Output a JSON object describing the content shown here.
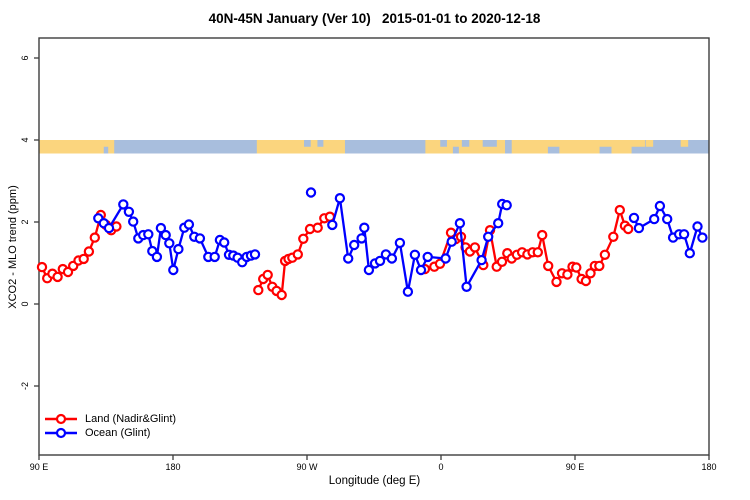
{
  "chart_data": {
    "type": "line",
    "title": "40N-45N January (Ver 10)   2015-01-01 to 2020-12-18",
    "xlabel": "Longitude (deg E)",
    "ylabel": "XCO2 - MLO trend (ppm)",
    "grid": false,
    "x_axis": {
      "min": 90,
      "max": 540,
      "ticks": [
        {
          "lon": 90,
          "label": "90 E"
        },
        {
          "lon": 180,
          "label": "180"
        },
        {
          "lon": 270,
          "label": "90 W"
        },
        {
          "lon": 360,
          "label": "0"
        },
        {
          "lon": 450,
          "label": "90 E"
        },
        {
          "lon": 540,
          "label": "180"
        }
      ]
    },
    "y_axis": {
      "min": -3.7,
      "max": 6.5,
      "ticks": [
        {
          "v": -2,
          "label": "-2"
        },
        {
          "v": 0,
          "label": "0"
        },
        {
          "v": 2,
          "label": "2"
        },
        {
          "v": 4,
          "label": "4"
        },
        {
          "v": 6,
          "label": "6"
        }
      ]
    },
    "map_strip": {
      "description": "land/ocean strip for 40N-45N plotted near y=3.8",
      "land_color": "#fbd57e",
      "ocean_color": "#a8bedd",
      "base_extent": [
        90,
        540
      ],
      "ocean_segments": [
        {
          "from": 133.5,
          "to": 136.5,
          "part": "bottom"
        },
        {
          "from": 140.5,
          "to": 236.3,
          "part": "full"
        },
        {
          "from": 268,
          "to": 272.5,
          "part": "top"
        },
        {
          "from": 277,
          "to": 281,
          "part": "top"
        },
        {
          "from": 295.5,
          "to": 349.5,
          "part": "full"
        },
        {
          "from": 359.5,
          "to": 364,
          "part": "top"
        },
        {
          "from": 368,
          "to": 372,
          "part": "bottom"
        },
        {
          "from": 374,
          "to": 379,
          "part": "top"
        },
        {
          "from": 388,
          "to": 397.5,
          "part": "top"
        },
        {
          "from": 403,
          "to": 407.5,
          "part": "full"
        },
        {
          "from": 431.8,
          "to": 439.5,
          "part": "bottom"
        },
        {
          "from": 466.5,
          "to": 474.5,
          "part": "bottom"
        },
        {
          "from": 488,
          "to": 497,
          "part": "bottom"
        },
        {
          "from": 497,
          "to": 540,
          "part": "full"
        }
      ],
      "land_patches": [
        {
          "from": 497.5,
          "to": 502.5,
          "part": "top"
        },
        {
          "from": 521,
          "to": 526,
          "part": "top"
        }
      ]
    },
    "series": [
      {
        "name": "Land (Nadir&Glint)",
        "color": "#ff0000",
        "segments": [
          [
            [
              92,
              0.9
            ],
            [
              95.5,
              0.63
            ],
            [
              99,
              0.74
            ],
            [
              102.5,
              0.66
            ],
            [
              106,
              0.85
            ],
            [
              109.5,
              0.78
            ],
            [
              113,
              0.93
            ],
            [
              116.5,
              1.06
            ],
            [
              120,
              1.1
            ],
            [
              123.5,
              1.28
            ],
            [
              127.5,
              1.62
            ],
            [
              131.5,
              2.17
            ],
            [
              135,
              1.93
            ],
            [
              138.5,
              1.8
            ],
            [
              142,
              1.89
            ]
          ],
          [
            [
              237.3,
              0.34
            ],
            [
              240.6,
              0.61
            ],
            [
              243.6,
              0.71
            ],
            [
              246.7,
              0.42
            ],
            [
              249.6,
              0.32
            ],
            [
              253,
              0.22
            ],
            [
              255.3,
              1.05
            ],
            [
              257.6,
              1.1
            ],
            [
              260.1,
              1.13
            ],
            [
              263.8,
              1.21
            ],
            [
              267.5,
              1.59
            ],
            [
              272,
              1.83
            ],
            [
              277.2,
              1.86
            ],
            [
              281.6,
              2.09
            ],
            [
              285.4,
              2.13
            ]
          ],
          [
            [
              349.2,
              0.85
            ],
            [
              355.5,
              0.91
            ],
            [
              359.3,
              0.98
            ],
            [
              366.7,
              1.74
            ],
            [
              369.8,
              1.58
            ],
            [
              373.4,
              1.64
            ],
            [
              376.5,
              1.38
            ],
            [
              379.4,
              1.28
            ],
            [
              382.8,
              1.38
            ],
            [
              388.4,
              0.95
            ],
            [
              392.9,
              1.8
            ],
            [
              397.4,
              0.91
            ],
            [
              401,
              1.03
            ],
            [
              404.5,
              1.24
            ],
            [
              407.5,
              1.11
            ],
            [
              411,
              1.2
            ],
            [
              414.5,
              1.26
            ],
            [
              418,
              1.21
            ],
            [
              421.5,
              1.26
            ],
            [
              425,
              1.26
            ],
            [
              428,
              1.68
            ],
            [
              432,
              0.93
            ],
            [
              437.6,
              0.54
            ],
            [
              441.3,
              0.75
            ],
            [
              444.9,
              0.72
            ],
            [
              448.3,
              0.91
            ],
            [
              450.9,
              0.89
            ],
            [
              454.4,
              0.61
            ],
            [
              457.3,
              0.56
            ],
            [
              460.4,
              0.75
            ],
            [
              463.3,
              0.93
            ],
            [
              466.3,
              0.93
            ],
            [
              470.1,
              1.2
            ],
            [
              475.7,
              1.64
            ],
            [
              480.1,
              2.29
            ],
            [
              483.5,
              1.91
            ],
            [
              485.7,
              1.83
            ]
          ]
        ],
        "isolated_points": []
      },
      {
        "name": "Ocean (Glint)",
        "color": "#0000ff",
        "segments": [
          [
            [
              129.8,
              2.09
            ],
            [
              133.5,
              1.97
            ],
            [
              137,
              1.85
            ],
            [
              146.6,
              2.43
            ],
            [
              150.4,
              2.25
            ],
            [
              153.3,
              2.01
            ],
            [
              156.7,
              1.6
            ],
            [
              160,
              1.68
            ],
            [
              163.4,
              1.7
            ],
            [
              166.1,
              1.29
            ],
            [
              169.2,
              1.15
            ],
            [
              171.9,
              1.85
            ],
            [
              175.1,
              1.68
            ],
            [
              177.5,
              1.48
            ],
            [
              180.2,
              0.83
            ],
            [
              183.6,
              1.34
            ],
            [
              187.6,
              1.86
            ],
            [
              190.7,
              1.94
            ],
            [
              194.3,
              1.64
            ],
            [
              198.1,
              1.6
            ],
            [
              203.7,
              1.15
            ],
            [
              208,
              1.15
            ],
            [
              211.5,
              1.56
            ],
            [
              214.4,
              1.5
            ],
            [
              217.6,
              1.2
            ],
            [
              220.5,
              1.18
            ],
            [
              223.4,
              1.13
            ],
            [
              226.5,
              1.02
            ],
            [
              229.5,
              1.15
            ],
            [
              232.4,
              1.18
            ],
            [
              235.1,
              1.21
            ]
          ],
          [
            [
              287,
              1.93
            ],
            [
              292.1,
              2.58
            ],
            [
              297.7,
              1.11
            ],
            [
              301.7,
              1.44
            ],
            [
              306.7,
              1.6
            ],
            [
              308.5,
              1.86
            ],
            [
              311.6,
              0.83
            ],
            [
              315.7,
              0.99
            ],
            [
              319,
              1.05
            ],
            [
              323,
              1.21
            ],
            [
              327,
              1.11
            ],
            [
              332.4,
              1.49
            ],
            [
              337.8,
              0.3
            ],
            [
              342.5,
              1.2
            ],
            [
              346.6,
              0.83
            ],
            [
              351.1,
              1.15
            ],
            [
              363.1,
              1.11
            ],
            [
              367.2,
              1.52
            ],
            [
              372.7,
              1.97
            ],
            [
              377.2,
              0.42
            ],
            [
              387.3,
              1.07
            ],
            [
              391.7,
              1.64
            ],
            [
              398.4,
              1.97
            ],
            [
              401.1,
              2.44
            ],
            [
              404.1,
              2.41
            ]
          ],
          [
            [
              489.6,
              2.1
            ],
            [
              492.9,
              1.85
            ],
            [
              503.2,
              2.07
            ],
            [
              507,
              2.39
            ],
            [
              511.9,
              2.07
            ],
            [
              515.9,
              1.62
            ],
            [
              519.9,
              1.7
            ],
            [
              523.3,
              1.7
            ],
            [
              527.1,
              1.24
            ],
            [
              532.3,
              1.89
            ],
            [
              535.6,
              1.62
            ]
          ]
        ],
        "isolated_points": [
          [
            272.7,
            2.72
          ]
        ]
      }
    ],
    "legend": {
      "position": "bottom-left",
      "entries": [
        {
          "label": "Land (Nadir&Glint)",
          "color": "#ff0000"
        },
        {
          "label": "Ocean (Glint)",
          "color": "#0000ff"
        }
      ]
    },
    "frame_color": "#3d3d3d"
  }
}
